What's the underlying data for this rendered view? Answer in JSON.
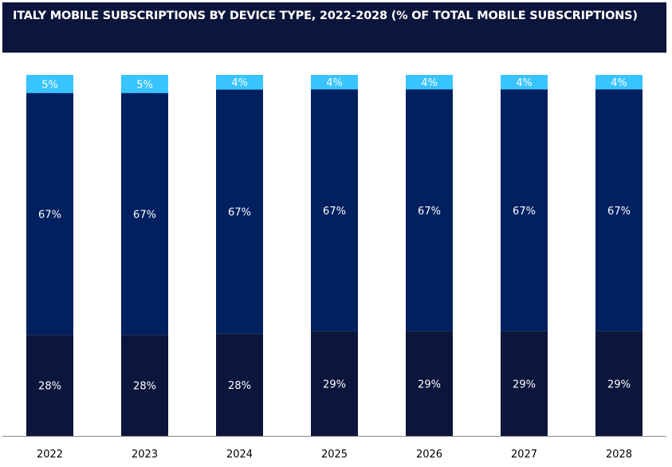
{
  "chart_data": {
    "type": "bar",
    "stacked": true,
    "title": "ITALY MOBILE SUBSCRIPTIONS BY DEVICE TYPE, 2022-2028 (% OF TOTAL MOBILE SUBSCRIPTIONS)",
    "categories": [
      "2022",
      "2023",
      "2024",
      "2025",
      "2026",
      "2027",
      "2028"
    ],
    "series": [
      {
        "values": [
          28,
          28,
          28,
          29,
          29,
          29,
          29
        ],
        "color": "#0c153b"
      },
      {
        "values": [
          67,
          67,
          67,
          67,
          67,
          67,
          67
        ],
        "color": "#002060"
      },
      {
        "values": [
          5,
          5,
          4,
          4,
          4,
          4,
          4
        ],
        "color": "#38c4ff"
      }
    ],
    "value_suffix": "%",
    "ylim": [
      0,
      100
    ],
    "grid": false,
    "legend": "none"
  }
}
